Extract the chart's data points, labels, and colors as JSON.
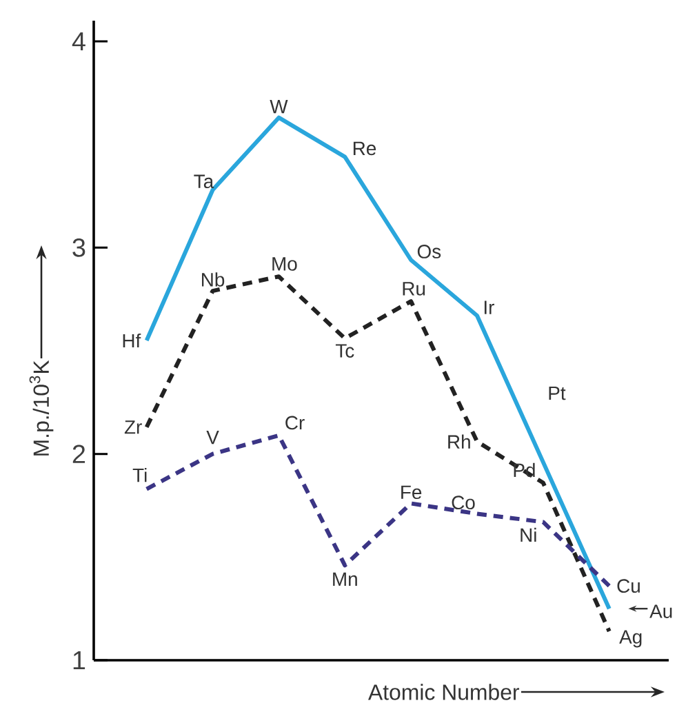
{
  "chart_data": {
    "type": "line",
    "xlabel": "Atomic Number",
    "ylabel": "M.p./10$^{3}$K",
    "categories": [
      null,
      null,
      null,
      null,
      null,
      null,
      null,
      null
    ],
    "ylim": [
      1,
      4.1
    ],
    "yticks": [
      1,
      2,
      3,
      4
    ],
    "tick_labels": "y",
    "marker": "none",
    "series": [
      {
        "color": "#2aa6dc",
        "line_style": "solid",
        "values": [
          2.55,
          3.28,
          3.63,
          3.44,
          2.94,
          2.67,
          1.96,
          1.25
        ]
      },
      {
        "color": "#222222",
        "line_style": "dashed",
        "values": [
          2.13,
          2.79,
          2.86,
          2.56,
          2.74,
          2.06,
          1.86,
          1.14
        ]
      },
      {
        "color": "#3b3585",
        "line_style": "dashed",
        "values": [
          1.83,
          2.0,
          2.09,
          1.46,
          1.76,
          1.71,
          1.67,
          1.36
        ]
      }
    ],
    "annotations": [
      "Hf",
      "Ta",
      "W",
      "Re",
      "Os",
      "Ir",
      "Pt",
      "Au",
      "Zr",
      "Nb",
      "Mo",
      "Tc",
      "Ru",
      "Rh",
      "Pd",
      "Ag",
      "Ti",
      "V",
      "Cr",
      "Mn",
      "Fe",
      "Co",
      "Ni",
      "Cu"
    ]
  }
}
